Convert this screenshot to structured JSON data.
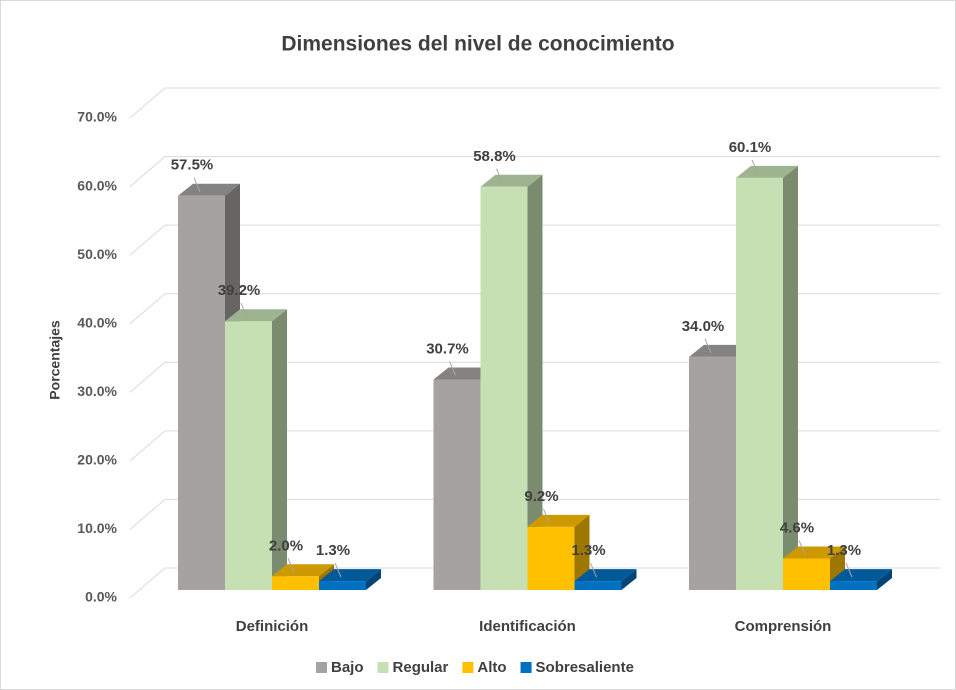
{
  "chart_data": {
    "type": "bar3d",
    "title": "Dimensiones del nivel de conocimiento",
    "y_label": "Porcentajes",
    "categories": [
      "Definición",
      "Identificación",
      "Comprensión"
    ],
    "series": [
      {
        "name": "Bajo",
        "color": "#a6a2a2",
        "values": [
          57.5,
          30.7,
          34.0
        ],
        "value_labels": [
          "57.5%",
          "30.7%",
          "34.0%"
        ]
      },
      {
        "name": "Regular",
        "color": "#c6e0b4",
        "values": [
          39.2,
          58.8,
          60.1
        ],
        "value_labels": [
          "39.2%",
          "58.8%",
          "60.1%"
        ]
      },
      {
        "name": "Alto",
        "color": "#ffc000",
        "values": [
          2.0,
          9.2,
          4.6
        ],
        "value_labels": [
          "2.0%",
          "9.2%",
          "4.6%"
        ]
      },
      {
        "name": "Sobresaliente",
        "color": "#0070c0",
        "values": [
          1.3,
          1.3,
          1.3
        ],
        "value_labels": [
          "1.3%",
          "1.3%",
          "1.3%"
        ]
      }
    ],
    "ylim": [
      0,
      70
    ],
    "yticks": [
      {
        "value": 0,
        "label": "0.0%"
      },
      {
        "value": 10,
        "label": "10.0%"
      },
      {
        "value": 20,
        "label": "20.0%"
      },
      {
        "value": 30,
        "label": "30.0%"
      },
      {
        "value": 40,
        "label": "40.0%"
      },
      {
        "value": 50,
        "label": "50.0%"
      },
      {
        "value": 60,
        "label": "60.0%"
      },
      {
        "value": 70,
        "label": "70.0%"
      }
    ],
    "grid": true,
    "legend": "bottom"
  }
}
